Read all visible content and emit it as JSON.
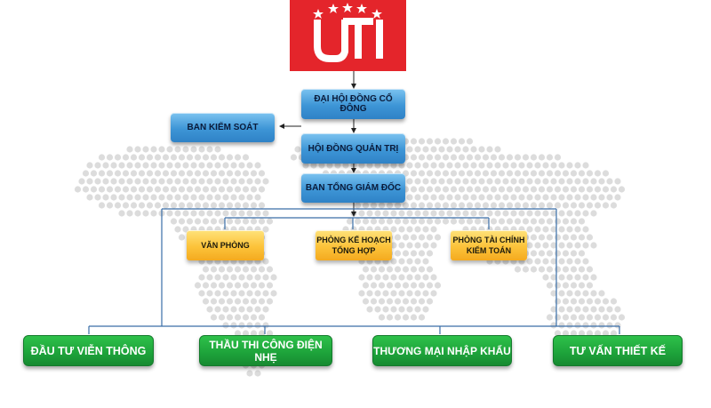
{
  "logo": {
    "text": "UTI",
    "color": "#e4252b"
  },
  "nodes": {
    "general_meeting": "ĐẠI HỘI ĐỒNG CỔ ĐÔNG",
    "supervisory_board": "BAN KIỂM SOÁT",
    "board_of_directors": "HỘI ĐỒNG QUẢN TRỊ",
    "executive_board": "BAN TỔNG GIÁM ĐỐC",
    "office": "VĂN PHÒNG",
    "planning_line1": "PHÒNG KẾ HOẠCH",
    "planning_line2": "TỔNG HỢP",
    "finance_line1": "PHÒNG TÀI CHÍNH",
    "finance_line2": "KIỂM TOÁN",
    "telecom_investment": "ĐẦU TƯ VIỄN THÔNG",
    "low_voltage_contracting": "THẦU THI CÔNG ĐIỆN NHẸ",
    "import_trade": "THƯƠNG MẠI NHẬP KHẨU",
    "design_consulting": "TƯ VẤN THIẾT KẾ"
  },
  "colors": {
    "blue_box": "#3d95d6",
    "yellow_box": "#fcc33a",
    "green_box": "#1da23a",
    "connector": "#3a6ea8",
    "map_dots": "#dcdcdc"
  }
}
